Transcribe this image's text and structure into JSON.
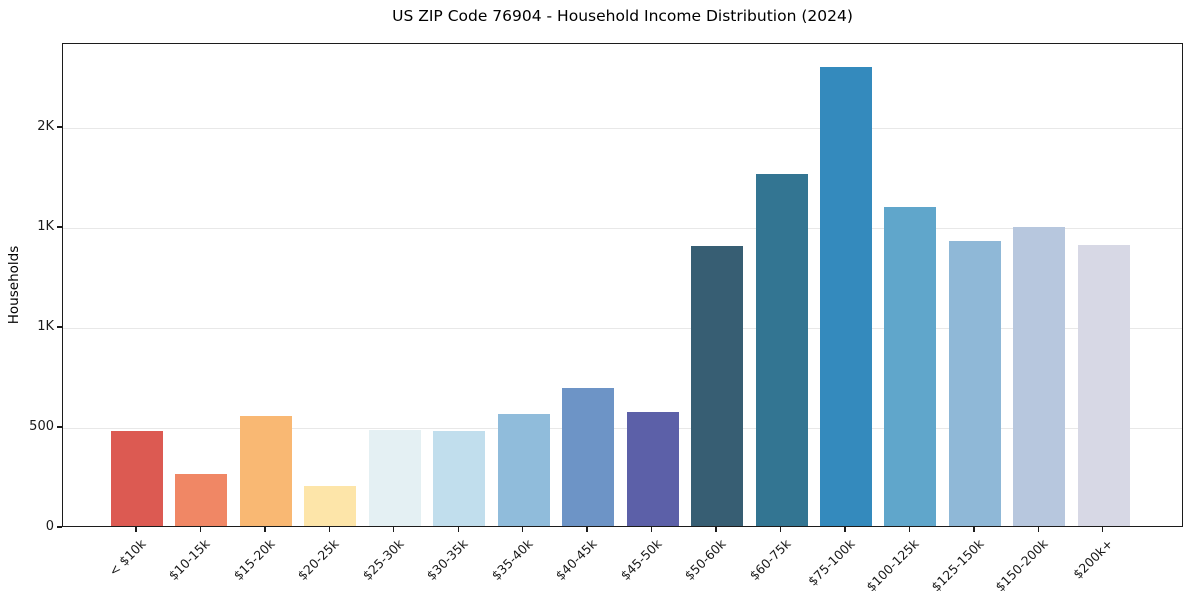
{
  "chart_data": {
    "type": "bar",
    "title": "US ZIP Code 76904 - Household Income Distribution (2024)",
    "xlabel": "",
    "ylabel": "Households",
    "ylim": [
      0,
      2420
    ],
    "grid": "horizontal-light",
    "legend_position": "none",
    "x_tick_rotation": 45,
    "categories": [
      "< $10k",
      "$10-15k",
      "$15-20k",
      "$20-25k",
      "$25-30k",
      "$30-35k",
      "$35-40k",
      "$40-45k",
      "$45-50k",
      "$50-60k",
      "$60-75k",
      "$75-100k",
      "$100-125k",
      "$125-150k",
      "$150-200k",
      "$200k+"
    ],
    "values": [
      475,
      260,
      550,
      200,
      480,
      475,
      560,
      690,
      570,
      1400,
      1760,
      2295,
      1595,
      1425,
      1495,
      1405
    ],
    "bar_colors": [
      "#dc5a52",
      "#f08765",
      "#f9b873",
      "#fde5a9",
      "#e4f0f3",
      "#c1deed",
      "#90bcdb",
      "#6d94c6",
      "#5c60a8",
      "#375e73",
      "#337592",
      "#348abd",
      "#60a6cb",
      "#8fb8d7",
      "#b7c7de",
      "#d7d8e5"
    ],
    "y_ticks": [
      {
        "value": 0,
        "label": "0"
      },
      {
        "value": 500,
        "label": "500"
      },
      {
        "value": 1000,
        "label": "1K"
      },
      {
        "value": 1500,
        "label": "1K"
      },
      {
        "value": 2000,
        "label": "2K"
      }
    ],
    "colors": {
      "grid": "#e8e8e8",
      "spine": "#1c1c1c",
      "text": "#1a1a1a",
      "background": "#ffffff"
    }
  }
}
